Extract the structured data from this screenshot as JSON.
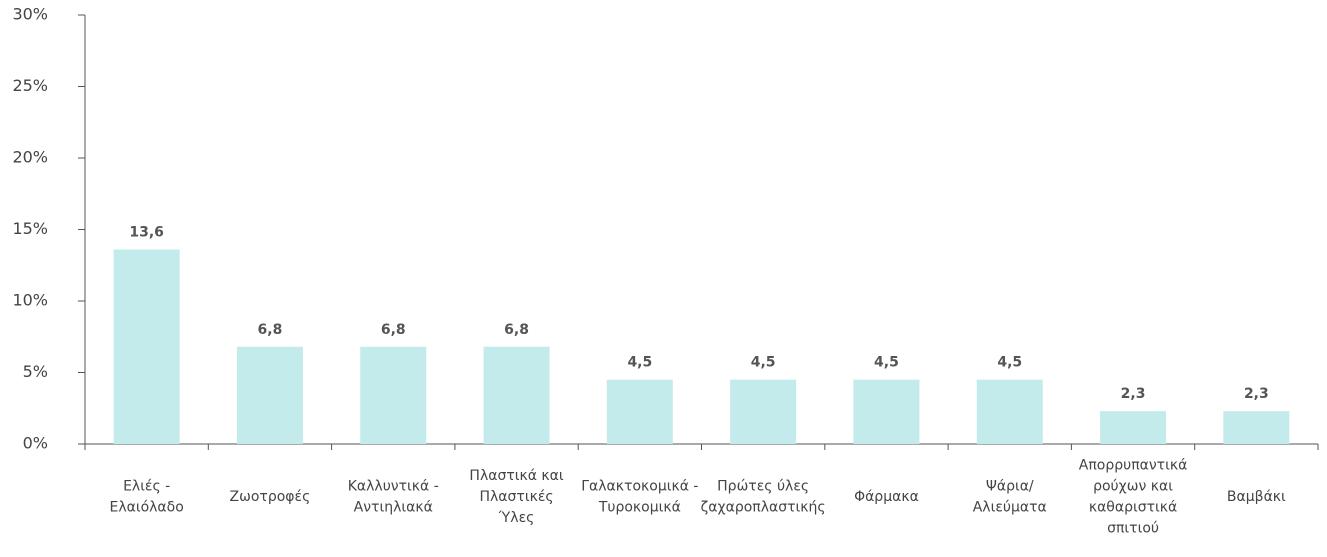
{
  "chart_data": {
    "type": "bar",
    "categories": [
      "Ελιές -\nΕλαιόλαδο",
      "Ζωοτροφές",
      "Καλλυντικά -\nΑντιηλιακά",
      "Πλαστικά και\nΠλαστικές\nΎλες",
      "Γαλακτοκομικά -\nΤυροκομικά",
      "Πρώτες ύλες\nζαχαροπλαστικής",
      "Φάρμακα",
      "Ψάρια/\nΑλιεύματα",
      "Απορρυπαντικά\nρούχων και\nκαθαριστικά\nσπιτιού",
      "Βαμβάκι"
    ],
    "values": [
      13.6,
      6.8,
      6.8,
      6.8,
      4.5,
      4.5,
      4.5,
      4.5,
      2.3,
      2.3
    ],
    "value_labels": [
      "13,6",
      "6,8",
      "6,8",
      "6,8",
      "4,5",
      "4,5",
      "4,5",
      "4,5",
      "2,3",
      "2,3"
    ],
    "color": "#c4ebeb",
    "ylim": [
      0,
      30
    ],
    "yticks": [
      {
        "value": 0,
        "label": "0%"
      },
      {
        "value": 5,
        "label": "5%"
      },
      {
        "value": 10,
        "label": "10%"
      },
      {
        "value": 15,
        "label": "15%"
      },
      {
        "value": 20,
        "label": "20%"
      },
      {
        "value": 25,
        "label": "25%"
      },
      {
        "value": 30,
        "label": "30%"
      }
    ],
    "grid": false
  }
}
